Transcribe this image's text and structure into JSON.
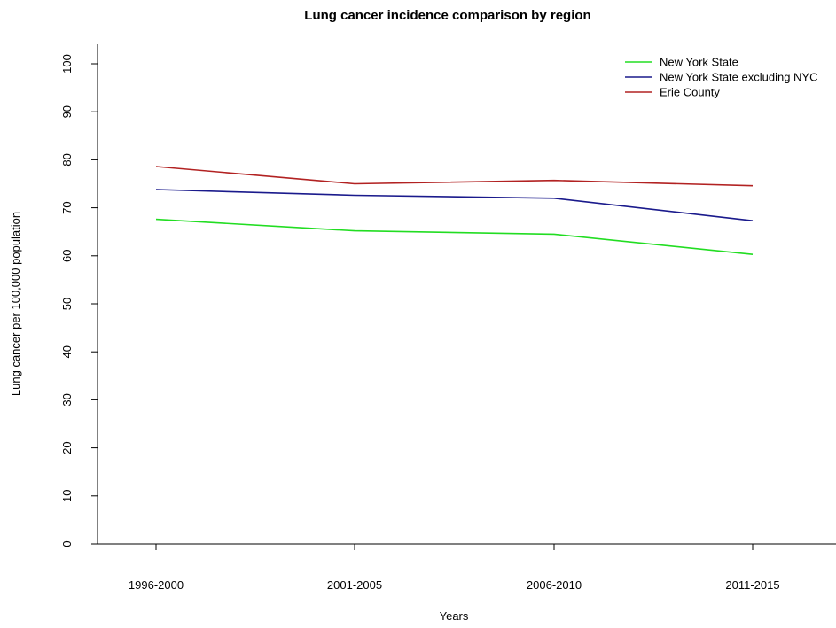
{
  "chart_data": {
    "type": "line",
    "title": "Lung cancer incidence comparison by region",
    "xlabel": "Years",
    "ylabel": "Lung cancer per 100,000 population",
    "categories": [
      "1996-2000",
      "2001-2005",
      "2006-2010",
      "2011-2015"
    ],
    "ylim": [
      0,
      100
    ],
    "yticks": [
      "0",
      "10",
      "20",
      "30",
      "40",
      "50",
      "60",
      "70",
      "80",
      "90",
      "100"
    ],
    "grid": false,
    "legend_position": "top-right",
    "series": [
      {
        "name": "New York State",
        "color": "#22dd22",
        "values": [
          67.6,
          65.2,
          64.5,
          60.3
        ]
      },
      {
        "name": "New York State excluding NYC",
        "color": "#1a1a8c",
        "values": [
          73.8,
          72.6,
          72.0,
          67.3
        ]
      },
      {
        "name": "Erie County",
        "color": "#b22222",
        "values": [
          78.6,
          75.0,
          75.7,
          74.6
        ]
      }
    ]
  }
}
